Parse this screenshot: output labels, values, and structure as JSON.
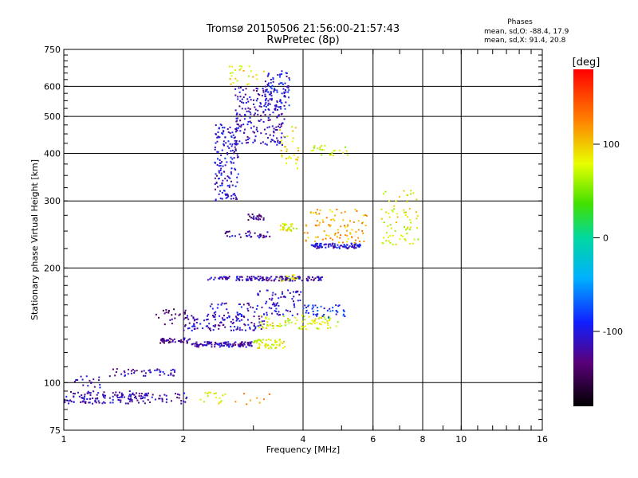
{
  "header": {
    "title_line1": "Tromsø 20150506 21:56:00-21:57:43",
    "title_line2": "RwPretec (8p)",
    "stats_title": "Phases",
    "stats_o": "mean, sd,O: -88.4, 17.9",
    "stats_x": "mean, sd,X:  91.4, 20.8"
  },
  "colorbar": {
    "label": "[deg]",
    "ticks": [
      {
        "label": "100",
        "value": 100
      },
      {
        "label": "0",
        "value": 0
      },
      {
        "label": "-100",
        "value": -100
      }
    ],
    "range": [
      -180,
      180
    ]
  },
  "chart_data": {
    "type": "scatter",
    "title": "Tromsø 20150506 21:56:00-21:57:43",
    "subtitle": "RwPretec (8p)",
    "xlabel": "Frequency [MHz]",
    "ylabel": "Stationary phase Virtual Height [km]",
    "xscale": "log",
    "yscale": "log",
    "xlim": [
      1,
      16
    ],
    "ylim": [
      75,
      750
    ],
    "xticks": [
      {
        "label": "1",
        "value": 1
      },
      {
        "label": "2",
        "value": 2
      },
      {
        "label": "4",
        "value": 4
      },
      {
        "label": "6",
        "value": 6
      },
      {
        "label": "8",
        "value": 8
      },
      {
        "label": "10",
        "value": 10
      },
      {
        "label": "16",
        "value": 16
      }
    ],
    "yticks": [
      {
        "label": "75",
        "value": 75
      },
      {
        "label": "100",
        "value": 100
      },
      {
        "label": "200",
        "value": 200
      },
      {
        "label": "300",
        "value": 300
      },
      {
        "label": "400",
        "value": 400
      },
      {
        "label": "500",
        "value": 500
      },
      {
        "label": "600",
        "value": 600
      },
      {
        "label": "750",
        "value": 750
      }
    ],
    "grid": true,
    "color_variable": "phase [deg]",
    "clusters": [
      {
        "f": [
          1.0,
          1.62
        ],
        "h": [
          88,
          95
        ],
        "phase": -115,
        "n": 140
      },
      {
        "f": [
          1.62,
          2.05
        ],
        "h": [
          88,
          94
        ],
        "phase": -120,
        "n": 30
      },
      {
        "f": [
          2.2,
          2.55
        ],
        "h": [
          88,
          95
        ],
        "phase": 80,
        "n": 18
      },
      {
        "f": [
          2.7,
          3.3
        ],
        "h": [
          87,
          94
        ],
        "phase": 120,
        "n": 8
      },
      {
        "f": [
          1.05,
          1.25
        ],
        "h": [
          97,
          104
        ],
        "phase": -120,
        "n": 18
      },
      {
        "f": [
          1.3,
          1.95
        ],
        "h": [
          104,
          109
        ],
        "phase": -115,
        "n": 45
      },
      {
        "f": [
          1.75,
          2.1
        ],
        "h": [
          127,
          131
        ],
        "phase": -125,
        "n": 40
      },
      {
        "f": [
          2.1,
          3.0
        ],
        "h": [
          124,
          128
        ],
        "phase": -118,
        "n": 110
      },
      {
        "f": [
          3.0,
          3.6
        ],
        "h": [
          123,
          130
        ],
        "phase": 80,
        "n": 55
      },
      {
        "f": [
          1.7,
          2.1
        ],
        "h": [
          142,
          156
        ],
        "phase": -140,
        "n": 25
      },
      {
        "f": [
          2.0,
          3.2
        ],
        "h": [
          137,
          150
        ],
        "phase": -110,
        "n": 120
      },
      {
        "f": [
          3.1,
          4.9
        ],
        "h": [
          138,
          150
        ],
        "phase": 80,
        "n": 90
      },
      {
        "f": [
          2.3,
          3.9
        ],
        "h": [
          150,
          162
        ],
        "phase": -110,
        "n": 70
      },
      {
        "f": [
          4.0,
          5.1
        ],
        "h": [
          148,
          160
        ],
        "phase": -90,
        "n": 45
      },
      {
        "f": [
          3.0,
          4.0
        ],
        "h": [
          162,
          175
        ],
        "phase": -105,
        "n": 35
      },
      {
        "f": [
          2.3,
          4.5
        ],
        "h": [
          185,
          190
        ],
        "phase": -115,
        "n": 140
      },
      {
        "f": [
          3.5,
          3.9
        ],
        "h": [
          184,
          192
        ],
        "phase": 80,
        "n": 15
      },
      {
        "f": [
          2.55,
          3.3
        ],
        "h": [
          240,
          250
        ],
        "phase": -120,
        "n": 35
      },
      {
        "f": [
          3.5,
          3.9
        ],
        "h": [
          250,
          262
        ],
        "phase": 80,
        "n": 30
      },
      {
        "f": [
          4.2,
          5.6
        ],
        "h": [
          225,
          232
        ],
        "phase": -105,
        "n": 90
      },
      {
        "f": [
          4.0,
          5.8
        ],
        "h": [
          232,
          285
        ],
        "phase": 110,
        "n": 90
      },
      {
        "f": [
          2.9,
          3.2
        ],
        "h": [
          266,
          278
        ],
        "phase": -125,
        "n": 25
      },
      {
        "f": [
          6.3,
          7.8
        ],
        "h": [
          230,
          320
        ],
        "phase": 80,
        "n": 70
      },
      {
        "f": [
          2.4,
          2.75
        ],
        "h": [
          300,
          480
        ],
        "phase": -105,
        "n": 160
      },
      {
        "f": [
          2.7,
          3.6
        ],
        "h": [
          420,
          600
        ],
        "phase": -115,
        "n": 200
      },
      {
        "f": [
          3.2,
          3.7
        ],
        "h": [
          520,
          660
        ],
        "phase": -100,
        "n": 80
      },
      {
        "f": [
          3.5,
          3.9
        ],
        "h": [
          360,
          470
        ],
        "phase": 90,
        "n": 30
      },
      {
        "f": [
          4.2,
          5.2
        ],
        "h": [
          395,
          420
        ],
        "phase": 75,
        "n": 25
      },
      {
        "f": [
          2.6,
          3.2
        ],
        "h": [
          600,
          680
        ],
        "phase": 90,
        "n": 25
      }
    ]
  }
}
